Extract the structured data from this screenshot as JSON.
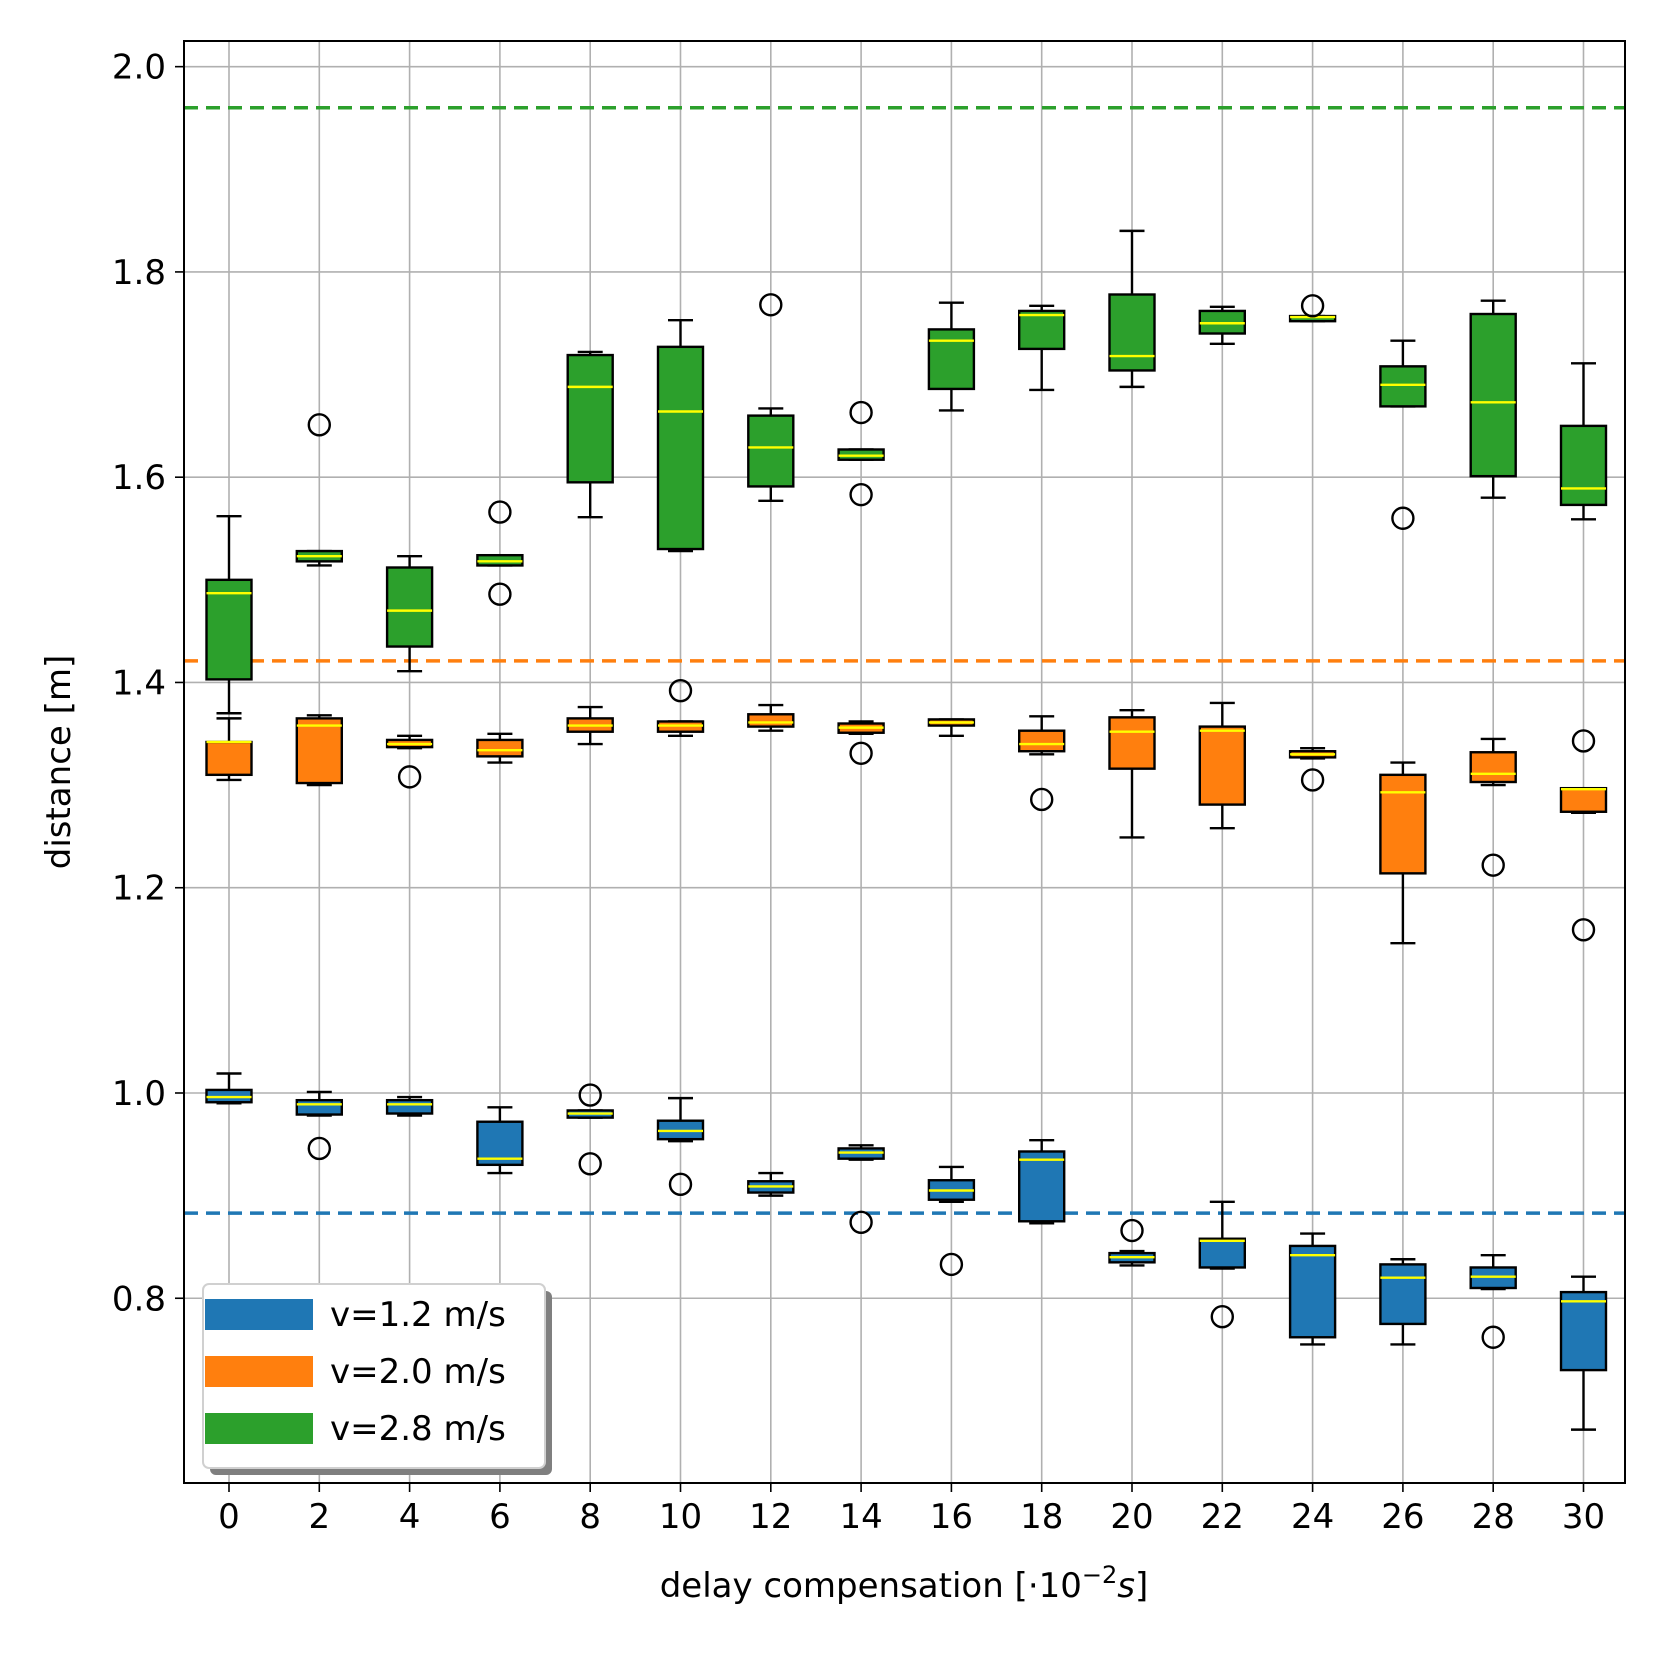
{
  "chart_data": {
    "type": "box",
    "title": "",
    "xlabel": "delay compensation [·10",
    "xlabel_exp": "−2",
    "xlabel_unit": "s",
    "xlabel_close": "]",
    "ylabel": "distance [m]",
    "ylim": [
      0.62,
      2.025
    ],
    "grid": true,
    "categories": [
      "0",
      "2",
      "4",
      "6",
      "8",
      "10",
      "12",
      "14",
      "16",
      "18",
      "20",
      "22",
      "24",
      "26",
      "28",
      "30"
    ],
    "y_ticks": [
      "0.8",
      "1.0",
      "1.2",
      "1.4",
      "1.6",
      "1.8",
      "2.0"
    ],
    "y_tick_values": [
      0.8,
      1.0,
      1.2,
      1.4,
      1.6,
      1.8,
      2.0
    ],
    "median_color": "#ffff00",
    "legend_placement": "lower-left",
    "series": [
      {
        "name": "v=1.2 m/s",
        "color": "#1f77b4",
        "reference_line": 0.883,
        "boxes": [
          {
            "whislo": 0.99,
            "q1": 0.991,
            "med": 0.996,
            "q3": 1.003,
            "whishi": 1.019,
            "fliers": []
          },
          {
            "whislo": 0.978,
            "q1": 0.979,
            "med": 0.989,
            "q3": 0.993,
            "whishi": 1.001,
            "fliers": [
              0.946
            ]
          },
          {
            "whislo": 0.978,
            "q1": 0.98,
            "med": 0.989,
            "q3": 0.993,
            "whishi": 0.996,
            "fliers": []
          },
          {
            "whislo": 0.922,
            "q1": 0.93,
            "med": 0.936,
            "q3": 0.972,
            "whishi": 0.986,
            "fliers": []
          },
          {
            "whislo": 0.976,
            "q1": 0.976,
            "med": 0.98,
            "q3": 0.983,
            "whishi": 0.983,
            "fliers": [
              0.998,
              0.931
            ]
          },
          {
            "whislo": 0.953,
            "q1": 0.955,
            "med": 0.963,
            "q3": 0.973,
            "whishi": 0.995,
            "fliers": [
              0.911
            ]
          },
          {
            "whislo": 0.9,
            "q1": 0.903,
            "med": 0.909,
            "q3": 0.914,
            "whishi": 0.922,
            "fliers": []
          },
          {
            "whislo": 0.935,
            "q1": 0.936,
            "med": 0.942,
            "q3": 0.946,
            "whishi": 0.949,
            "fliers": [
              0.874
            ]
          },
          {
            "whislo": 0.894,
            "q1": 0.896,
            "med": 0.905,
            "q3": 0.915,
            "whishi": 0.928,
            "fliers": [
              0.833
            ]
          },
          {
            "whislo": 0.873,
            "q1": 0.875,
            "med": 0.935,
            "q3": 0.943,
            "whishi": 0.954,
            "fliers": []
          },
          {
            "whislo": 0.832,
            "q1": 0.835,
            "med": 0.84,
            "q3": 0.844,
            "whishi": 0.846,
            "fliers": [
              0.866
            ]
          },
          {
            "whislo": 0.829,
            "q1": 0.83,
            "med": 0.856,
            "q3": 0.858,
            "whishi": 0.894,
            "fliers": [
              0.782
            ]
          },
          {
            "whislo": 0.755,
            "q1": 0.762,
            "med": 0.842,
            "q3": 0.851,
            "whishi": 0.863,
            "fliers": []
          },
          {
            "whislo": 0.755,
            "q1": 0.775,
            "med": 0.82,
            "q3": 0.833,
            "whishi": 0.838,
            "fliers": []
          },
          {
            "whislo": 0.809,
            "q1": 0.81,
            "med": 0.821,
            "q3": 0.83,
            "whishi": 0.842,
            "fliers": [
              0.762
            ]
          },
          {
            "whislo": 0.672,
            "q1": 0.73,
            "med": 0.797,
            "q3": 0.806,
            "whishi": 0.821,
            "fliers": []
          }
        ]
      },
      {
        "name": "v=2.0 m/s",
        "color": "#ff7f0e",
        "reference_line": 1.421,
        "boxes": [
          {
            "whislo": 1.305,
            "q1": 1.31,
            "med": 1.342,
            "q3": 1.342,
            "whishi": 1.365,
            "fliers": []
          },
          {
            "whislo": 1.3,
            "q1": 1.302,
            "med": 1.358,
            "q3": 1.365,
            "whishi": 1.368,
            "fliers": []
          },
          {
            "whislo": 1.336,
            "q1": 1.337,
            "med": 1.34,
            "q3": 1.344,
            "whishi": 1.348,
            "fliers": [
              1.308
            ]
          },
          {
            "whislo": 1.322,
            "q1": 1.328,
            "med": 1.334,
            "q3": 1.344,
            "whishi": 1.35,
            "fliers": []
          },
          {
            "whislo": 1.34,
            "q1": 1.352,
            "med": 1.358,
            "q3": 1.365,
            "whishi": 1.376,
            "fliers": []
          },
          {
            "whislo": 1.348,
            "q1": 1.352,
            "med": 1.358,
            "q3": 1.362,
            "whishi": 1.362,
            "fliers": [
              1.392
            ]
          },
          {
            "whislo": 1.353,
            "q1": 1.357,
            "med": 1.361,
            "q3": 1.369,
            "whishi": 1.378,
            "fliers": []
          },
          {
            "whislo": 1.35,
            "q1": 1.351,
            "med": 1.356,
            "q3": 1.36,
            "whishi": 1.362,
            "fliers": [
              1.331
            ]
          },
          {
            "whislo": 1.348,
            "q1": 1.358,
            "med": 1.361,
            "q3": 1.364,
            "whishi": 1.364,
            "fliers": []
          },
          {
            "whislo": 1.33,
            "q1": 1.333,
            "med": 1.34,
            "q3": 1.353,
            "whishi": 1.367,
            "fliers": [
              1.286
            ]
          },
          {
            "whislo": 1.249,
            "q1": 1.316,
            "med": 1.352,
            "q3": 1.366,
            "whishi": 1.373,
            "fliers": []
          },
          {
            "whislo": 1.258,
            "q1": 1.281,
            "med": 1.353,
            "q3": 1.357,
            "whishi": 1.38,
            "fliers": []
          },
          {
            "whislo": 1.326,
            "q1": 1.327,
            "med": 1.33,
            "q3": 1.333,
            "whishi": 1.336,
            "fliers": [
              1.305
            ]
          },
          {
            "whislo": 1.146,
            "q1": 1.214,
            "med": 1.293,
            "q3": 1.31,
            "whishi": 1.322,
            "fliers": []
          },
          {
            "whislo": 1.3,
            "q1": 1.303,
            "med": 1.311,
            "q3": 1.332,
            "whishi": 1.345,
            "fliers": [
              1.222
            ]
          },
          {
            "whislo": 1.273,
            "q1": 1.274,
            "med": 1.296,
            "q3": 1.297,
            "whishi": 1.297,
            "fliers": [
              1.343,
              1.159
            ]
          }
        ]
      },
      {
        "name": "v=2.8 m/s",
        "color": "#2ca02c",
        "reference_line": 1.96,
        "boxes": [
          {
            "whislo": 1.37,
            "q1": 1.403,
            "med": 1.487,
            "q3": 1.5,
            "whishi": 1.562,
            "fliers": []
          },
          {
            "whislo": 1.514,
            "q1": 1.518,
            "med": 1.523,
            "q3": 1.528,
            "whishi": 1.528,
            "fliers": [
              1.651
            ]
          },
          {
            "whislo": 1.411,
            "q1": 1.435,
            "med": 1.47,
            "q3": 1.512,
            "whishi": 1.523,
            "fliers": []
          },
          {
            "whislo": 1.514,
            "q1": 1.514,
            "med": 1.518,
            "q3": 1.524,
            "whishi": 1.524,
            "fliers": [
              1.566,
              1.486
            ]
          },
          {
            "whislo": 1.561,
            "q1": 1.595,
            "med": 1.688,
            "q3": 1.719,
            "whishi": 1.722,
            "fliers": []
          },
          {
            "whislo": 1.528,
            "q1": 1.53,
            "med": 1.664,
            "q3": 1.727,
            "whishi": 1.753,
            "fliers": []
          },
          {
            "whislo": 1.577,
            "q1": 1.591,
            "med": 1.629,
            "q3": 1.66,
            "whishi": 1.667,
            "fliers": [
              1.768
            ]
          },
          {
            "whislo": 1.617,
            "q1": 1.617,
            "med": 1.621,
            "q3": 1.627,
            "whishi": 1.627,
            "fliers": [
              1.663,
              1.583
            ]
          },
          {
            "whislo": 1.665,
            "q1": 1.686,
            "med": 1.733,
            "q3": 1.744,
            "whishi": 1.77,
            "fliers": []
          },
          {
            "whislo": 1.685,
            "q1": 1.725,
            "med": 1.758,
            "q3": 1.762,
            "whishi": 1.767,
            "fliers": []
          },
          {
            "whislo": 1.688,
            "q1": 1.704,
            "med": 1.718,
            "q3": 1.778,
            "whishi": 1.84,
            "fliers": []
          },
          {
            "whislo": 1.73,
            "q1": 1.74,
            "med": 1.75,
            "q3": 1.762,
            "whishi": 1.766,
            "fliers": []
          },
          {
            "whislo": 1.752,
            "q1": 1.752,
            "med": 1.756,
            "q3": 1.757,
            "whishi": 1.757,
            "fliers": [
              1.767
            ]
          },
          {
            "whislo": 1.669,
            "q1": 1.669,
            "med": 1.69,
            "q3": 1.708,
            "whishi": 1.733,
            "fliers": [
              1.56
            ]
          },
          {
            "whislo": 1.58,
            "q1": 1.601,
            "med": 1.673,
            "q3": 1.759,
            "whishi": 1.772,
            "fliers": []
          },
          {
            "whislo": 1.559,
            "q1": 1.573,
            "med": 1.589,
            "q3": 1.65,
            "whishi": 1.711,
            "fliers": []
          }
        ]
      }
    ]
  }
}
